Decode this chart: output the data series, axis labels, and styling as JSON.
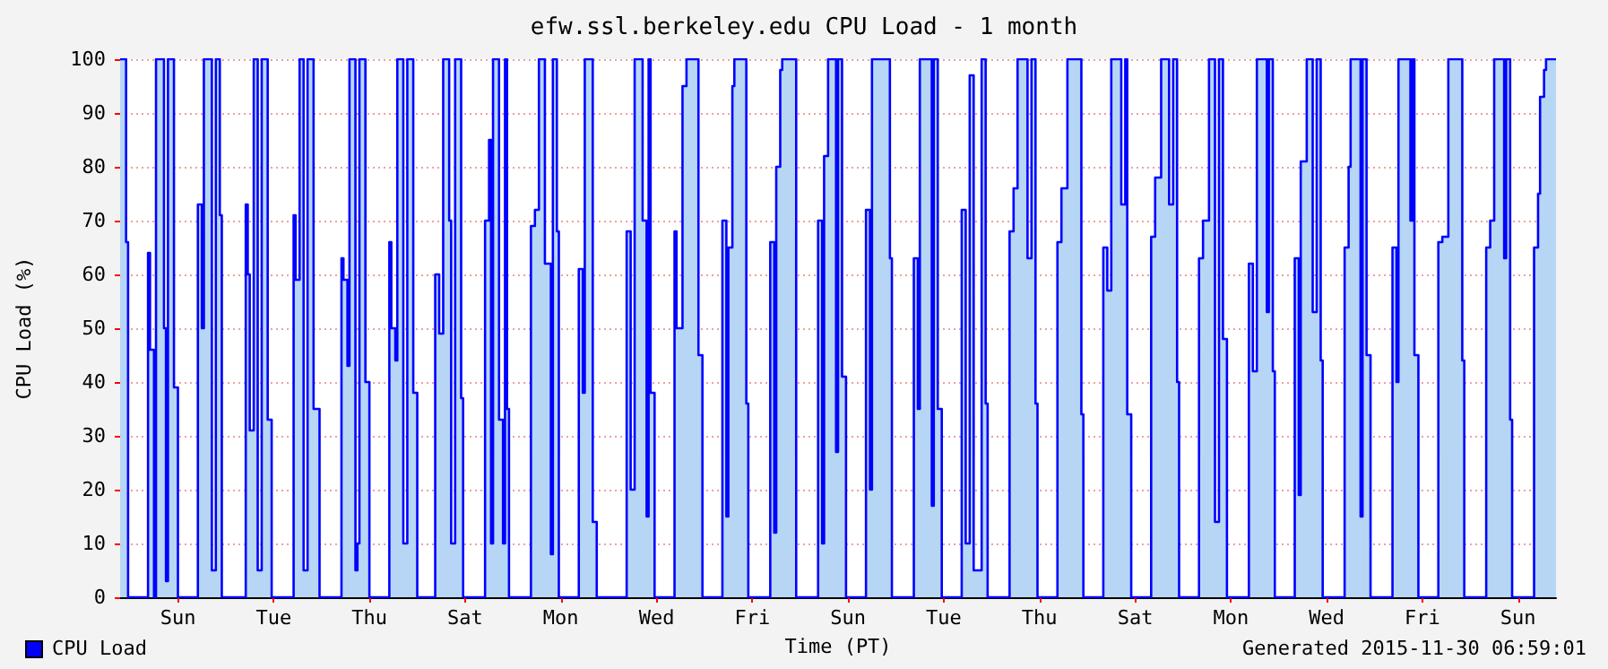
{
  "chart_data": {
    "type": "area",
    "title": "efw.ssl.berkeley.edu CPU Load - 1 month",
    "xlabel": "Time (PT)",
    "ylabel": "CPU Load (%)",
    "annotations": [
      "Generated 2015-11-30 06:59:01"
    ],
    "ylim": [
      0,
      100
    ],
    "yticks": [
      0,
      10,
      20,
      30,
      40,
      50,
      60,
      70,
      80,
      90,
      100
    ],
    "grid": "y",
    "legend": "bottom left",
    "categories": [
      null,
      null,
      null,
      null,
      null,
      null,
      null,
      null,
      null,
      null,
      null,
      null,
      null,
      null,
      null,
      null,
      null,
      null,
      null,
      null,
      null,
      null,
      null,
      null,
      null,
      null,
      null,
      null,
      null,
      "Sun",
      null,
      null,
      null,
      null,
      null,
      null,
      null,
      null,
      null,
      null,
      null,
      null,
      null,
      null,
      null,
      null,
      null,
      null,
      null,
      null,
      null,
      null,
      null,
      null,
      null,
      null,
      null,
      null,
      null,
      null,
      null,
      null,
      null,
      null,
      null,
      null,
      null,
      null,
      null,
      null,
      null,
      null,
      null,
      null,
      null,
      null,
      null,
      "Tue",
      null,
      null,
      null,
      null,
      null,
      null,
      null,
      null,
      null,
      null,
      null,
      null,
      null,
      null,
      null,
      null,
      null,
      null,
      null,
      null,
      null,
      null,
      null,
      null,
      null,
      null,
      null,
      null,
      null,
      null,
      null,
      null,
      null,
      null,
      null,
      null,
      null,
      null,
      null,
      null,
      null,
      null,
      null,
      null,
      null,
      null,
      null,
      "Thu",
      null,
      null,
      null,
      null,
      null,
      null,
      null,
      null,
      null,
      null,
      null,
      null,
      null,
      null,
      null,
      null,
      null,
      null,
      null,
      null,
      null,
      null,
      null,
      null,
      null,
      null,
      null,
      null,
      null,
      null,
      null,
      null,
      null,
      null,
      null,
      null,
      null,
      null,
      null,
      null,
      null,
      null,
      null,
      null,
      null,
      null,
      null,
      "Sat",
      null,
      null,
      null,
      null,
      null,
      null,
      null,
      null,
      null,
      null,
      null,
      null,
      null,
      null,
      null,
      null,
      null,
      null,
      null,
      null,
      null,
      null,
      null,
      null,
      null,
      null,
      null,
      null,
      null,
      null,
      null,
      null,
      null,
      null,
      null,
      null,
      null,
      null,
      null,
      null,
      null,
      null,
      null,
      null,
      null,
      null,
      null,
      "Mon",
      null,
      null,
      null,
      null,
      null,
      null,
      null,
      null,
      null,
      null,
      null,
      null,
      null,
      null,
      null,
      null,
      null,
      null,
      null,
      null,
      null,
      null,
      null,
      null,
      null,
      null,
      null,
      null,
      null,
      null,
      null,
      null,
      null,
      null,
      null,
      null,
      null,
      null,
      null,
      null,
      null,
      null,
      null,
      null,
      null,
      null,
      null,
      "Wed",
      null,
      null,
      null,
      null,
      null,
      null,
      null,
      null,
      null,
      null,
      null,
      null,
      null,
      null,
      null,
      null,
      null,
      null,
      null,
      null,
      null,
      null,
      null,
      null,
      null,
      null,
      null,
      null,
      null,
      null,
      null,
      null,
      null,
      null,
      null,
      null,
      null,
      null,
      null,
      null,
      null,
      null,
      null,
      null,
      null,
      null,
      null,
      "Fri",
      null,
      null,
      null,
      null,
      null,
      null,
      null,
      null,
      null,
      null,
      null,
      null,
      null,
      null,
      null,
      null,
      null,
      null,
      null,
      null,
      null,
      null,
      null,
      null,
      null,
      null,
      null,
      null,
      null,
      null,
      null,
      null,
      null,
      null,
      null,
      null,
      null,
      null,
      null,
      null,
      null,
      null,
      null,
      null,
      null,
      null,
      null,
      "Sun",
      null,
      null,
      null,
      null,
      null,
      null,
      null,
      null,
      null,
      null,
      null,
      null,
      null,
      null,
      null,
      null,
      null,
      null,
      null,
      null,
      null,
      null,
      null,
      null,
      null,
      null,
      null,
      null,
      null,
      null,
      null,
      null,
      null,
      null,
      null,
      null,
      null,
      null,
      null,
      null,
      null,
      null,
      null,
      null,
      null,
      null,
      null,
      "Tue",
      null,
      null,
      null,
      null,
      null,
      null,
      null,
      null,
      null,
      null,
      null,
      null,
      null,
      null,
      null,
      null,
      null,
      null,
      null,
      null,
      null,
      null,
      null,
      null,
      null,
      null,
      null,
      null,
      null,
      null,
      null,
      null,
      null,
      null,
      null,
      null,
      null,
      null,
      null,
      null,
      null,
      null,
      null,
      null,
      null,
      null,
      null,
      "Thu",
      null,
      null,
      null,
      null,
      null,
      null,
      null,
      null,
      null,
      null,
      null,
      null,
      null,
      null,
      null,
      null,
      null,
      null,
      null,
      null,
      null,
      null,
      null,
      null,
      null,
      null,
      null,
      null,
      null,
      null,
      null,
      null,
      null,
      null,
      null,
      null,
      null,
      null,
      null,
      null,
      null,
      null,
      null,
      null,
      null,
      null,
      null,
      "Sat",
      null,
      null,
      null,
      null,
      null,
      null,
      null,
      null,
      null,
      null,
      null,
      null,
      null,
      null,
      null,
      null,
      null,
      null,
      null,
      null,
      null,
      null,
      null,
      null,
      null,
      null,
      null,
      null,
      null,
      null,
      null,
      null,
      null,
      null,
      null,
      null,
      null,
      null,
      null,
      null,
      null,
      null,
      null,
      null,
      null,
      null,
      null,
      "Mon",
      null,
      null,
      null,
      null,
      null,
      null,
      null,
      null,
      null,
      null,
      null,
      null,
      null,
      null,
      null,
      null,
      null,
      null,
      null,
      null,
      null,
      null,
      null,
      null,
      null,
      null,
      null,
      null,
      null,
      null,
      null,
      null,
      null,
      null,
      null,
      null,
      null,
      null,
      null,
      null,
      null,
      null,
      null,
      null,
      null,
      null,
      null,
      "Wed",
      null,
      null,
      null,
      null,
      null,
      null,
      null,
      null,
      null,
      null,
      null,
      null,
      null,
      null,
      null,
      null,
      null,
      null,
      null,
      null,
      null,
      null,
      null,
      null,
      null,
      null,
      null,
      null,
      null,
      null,
      null,
      null,
      null,
      null,
      null,
      null,
      null,
      null,
      null,
      null,
      null,
      null,
      null,
      null,
      null,
      null,
      null,
      "Fri",
      null,
      null,
      null,
      null,
      null,
      null,
      null,
      null,
      null,
      null,
      null,
      null,
      null,
      null,
      null,
      null,
      null,
      null,
      null,
      null,
      null,
      null,
      null,
      null,
      null,
      null,
      null,
      null,
      null,
      null,
      null,
      null,
      null,
      null,
      null,
      null,
      null,
      null,
      null,
      null,
      null,
      null,
      null,
      null,
      null,
      null,
      null,
      "Sun",
      null,
      null,
      null,
      null,
      null,
      null,
      null,
      null,
      null,
      null,
      null,
      null,
      null,
      null,
      null,
      null,
      null,
      null,
      null
    ],
    "series": [
      {
        "name": "CPU Load",
        "color": "#0000ff",
        "values": [
          100,
          100,
          100,
          66,
          0,
          0,
          0,
          0,
          0,
          0,
          0,
          0,
          0,
          0,
          64,
          46,
          46,
          0,
          100,
          100,
          100,
          100,
          50,
          3,
          100,
          100,
          100,
          39,
          39,
          0,
          0,
          0,
          0,
          0,
          0,
          0,
          0,
          0,
          0,
          73,
          73,
          50,
          100,
          100,
          100,
          100,
          5,
          5,
          100,
          100,
          71,
          0,
          0,
          0,
          0,
          0,
          0,
          0,
          0,
          0,
          0,
          0,
          0,
          73,
          60,
          31,
          31,
          100,
          100,
          5,
          5,
          100,
          100,
          100,
          33,
          33,
          0,
          0,
          0,
          0,
          0,
          0,
          0,
          0,
          0,
          0,
          0,
          71,
          59,
          59,
          100,
          100,
          5,
          5,
          100,
          100,
          100,
          35,
          35,
          35,
          0,
          0,
          0,
          0,
          0,
          0,
          0,
          0,
          0,
          0,
          0,
          63,
          59,
          59,
          43,
          100,
          100,
          100,
          5,
          10,
          100,
          100,
          100,
          40,
          40,
          0,
          0,
          0,
          0,
          0,
          0,
          0,
          0,
          0,
          0,
          66,
          50,
          50,
          44,
          100,
          100,
          100,
          10,
          10,
          100,
          100,
          100,
          38,
          38,
          0,
          0,
          0,
          0,
          0,
          0,
          0,
          0,
          0,
          60,
          60,
          49,
          49,
          100,
          100,
          100,
          70,
          10,
          10,
          100,
          100,
          100,
          37,
          0,
          0,
          0,
          0,
          0,
          0,
          0,
          0,
          0,
          0,
          0,
          70,
          70,
          85,
          10,
          100,
          100,
          100,
          33,
          33,
          10,
          100,
          35,
          0,
          0,
          0,
          0,
          0,
          0,
          0,
          0,
          0,
          0,
          0,
          69,
          69,
          72,
          72,
          100,
          100,
          100,
          62,
          62,
          62,
          8,
          100,
          100,
          68,
          0,
          0,
          0,
          0,
          0,
          0,
          0,
          0,
          0,
          0,
          61,
          61,
          38,
          100,
          100,
          100,
          100,
          14,
          14,
          0,
          0,
          0,
          0,
          0,
          0,
          0,
          0,
          0,
          0,
          0,
          0,
          0,
          0,
          0,
          68,
          68,
          20,
          20,
          100,
          100,
          100,
          100,
          70,
          70,
          15,
          100,
          38,
          38,
          0,
          0,
          0,
          0,
          0,
          0,
          0,
          0,
          0,
          0,
          68,
          50,
          50,
          50,
          95,
          95,
          100,
          100,
          100,
          100,
          100,
          100,
          45,
          45,
          0,
          0,
          0,
          0,
          0,
          0,
          0,
          0,
          0,
          0,
          70,
          70,
          15,
          65,
          65,
          95,
          100,
          100,
          100,
          100,
          100,
          100,
          36,
          0,
          0,
          0,
          0,
          0,
          0,
          0,
          0,
          0,
          0,
          0,
          66,
          66,
          12,
          80,
          80,
          98,
          100,
          100,
          100,
          100,
          100,
          100,
          100,
          0,
          0,
          0,
          0,
          0,
          0,
          0,
          0,
          0,
          0,
          0,
          70,
          70,
          10,
          82,
          82,
          100,
          100,
          100,
          100,
          27,
          100,
          100,
          41,
          41,
          0,
          0,
          0,
          0,
          0,
          0,
          0,
          0,
          0,
          0,
          72,
          72,
          20,
          100,
          100,
          100,
          100,
          100,
          100,
          100,
          100,
          100,
          63,
          0,
          0,
          0,
          0,
          0,
          0,
          0,
          0,
          0,
          0,
          0,
          63,
          63,
          35,
          100,
          100,
          100,
          100,
          100,
          100,
          17,
          100,
          100,
          35,
          35,
          0,
          0,
          0,
          0,
          0,
          0,
          0,
          0,
          0,
          0,
          72,
          72,
          10,
          10,
          97,
          97,
          5,
          5,
          5,
          5,
          100,
          100,
          36,
          0,
          0,
          0,
          0,
          0,
          0,
          0,
          0,
          0,
          0,
          0,
          68,
          68,
          76,
          76,
          100,
          100,
          100,
          100,
          100,
          63,
          63,
          100,
          100,
          36,
          0,
          0,
          0,
          0,
          0,
          0,
          0,
          0,
          0,
          0,
          66,
          66,
          76,
          76,
          76,
          100,
          100,
          100,
          100,
          100,
          100,
          100,
          34,
          0,
          0,
          0,
          0,
          0,
          0,
          0,
          0,
          0,
          0,
          65,
          65,
          57,
          57,
          100,
          100,
          100,
          100,
          100,
          73,
          73,
          100,
          34,
          34,
          0,
          0,
          0,
          0,
          0,
          0,
          0,
          0,
          0,
          0,
          67,
          67,
          78,
          78,
          78,
          100,
          100,
          100,
          100,
          73,
          73,
          100,
          100,
          40,
          0,
          0,
          0,
          0,
          0,
          0,
          0,
          0,
          0,
          0,
          63,
          63,
          70,
          70,
          70,
          100,
          100,
          100,
          14,
          14,
          100,
          100,
          48,
          48,
          0,
          0,
          0,
          0,
          0,
          0,
          0,
          0,
          0,
          0,
          0,
          62,
          62,
          42,
          42,
          100,
          100,
          100,
          100,
          100,
          53,
          100,
          100,
          42,
          0,
          0,
          0,
          0,
          0,
          0,
          0,
          0,
          0,
          0,
          63,
          63,
          19,
          81,
          81,
          81,
          100,
          100,
          100,
          53,
          53,
          100,
          100,
          44,
          0,
          0,
          0,
          0,
          0,
          0,
          0,
          0,
          0,
          0,
          0,
          65,
          65,
          80,
          100,
          100,
          100,
          100,
          100,
          15,
          100,
          100,
          45,
          45,
          0,
          0,
          0,
          0,
          0,
          0,
          0,
          0,
          0,
          0,
          0,
          65,
          65,
          40,
          100,
          100,
          100,
          100,
          100,
          100,
          70,
          100,
          45,
          45,
          0,
          0,
          0,
          0,
          0,
          0,
          0,
          0,
          0,
          0,
          66,
          66,
          67,
          67,
          67,
          100,
          100,
          100,
          100,
          100,
          100,
          100,
          44,
          0,
          0,
          0,
          0,
          0,
          0,
          0,
          0,
          0,
          0,
          0,
          65,
          65,
          70,
          70,
          100,
          100,
          100,
          100,
          100,
          63,
          100,
          100,
          33,
          0,
          0,
          0,
          0,
          0,
          0,
          0,
          0,
          0,
          0,
          0,
          65,
          65,
          75,
          93,
          93,
          98,
          100,
          100,
          100,
          100,
          100,
          100
        ]
      }
    ]
  }
}
